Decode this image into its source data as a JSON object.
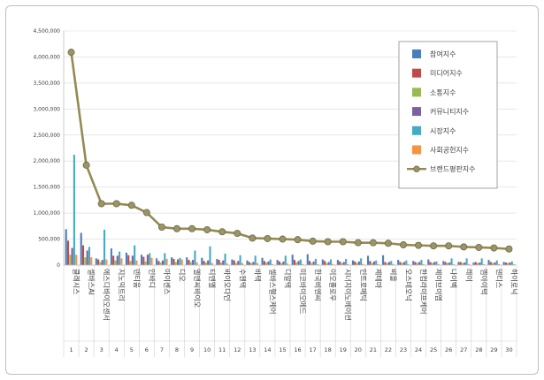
{
  "chart_data": {
    "type": "bar",
    "title": "",
    "xlabel": "",
    "ylabel": "",
    "ylim": [
      0,
      4500000
    ],
    "yticks": [
      "0",
      "500,000",
      "1,000,000",
      "1,500,000",
      "2,000,000",
      "2,500,000",
      "3,000,000",
      "3,500,000",
      "4,000,000",
      "4,500,000"
    ],
    "ytick_values": [
      0,
      500000,
      1000000,
      1500000,
      2000000,
      2500000,
      3000000,
      3500000,
      4000000,
      4500000
    ],
    "grid": true,
    "legend_position": "top-right",
    "categories": [
      "클래시스",
      "셀바스AI",
      "에스디바이오센서",
      "지노믹트리",
      "덴티움",
      "인바디",
      "아이센스",
      "디오",
      "엘앤씨바이오",
      "티앤엘",
      "바이오다인",
      "수젠텍",
      "바텍",
      "셀바스헬스케어",
      "디알텍",
      "미코바이오메드",
      "한국비엔씨",
      "이오플로우",
      "시너지이노베이션",
      "인트로메딕",
      "제테마",
      "비올",
      "오스테오닉",
      "한컴라이프케어",
      "제이브이엠",
      "나이벡",
      "레이",
      "엠아이텍",
      "덴티스",
      "하이로닉"
    ],
    "category_numbers": [
      "1",
      "2",
      "3",
      "4",
      "5",
      "6",
      "7",
      "8",
      "9",
      "10",
      "11",
      "12",
      "13",
      "14",
      "15",
      "16",
      "17",
      "18",
      "19",
      "20",
      "21",
      "22",
      "23",
      "24",
      "25",
      "26",
      "27",
      "28",
      "29",
      "30"
    ],
    "series": [
      {
        "name": "참여지수",
        "color": "#4a7ebb",
        "kind": "bar",
        "values": [
          690000,
          620000,
          130000,
          320000,
          240000,
          200000,
          130000,
          150000,
          150000,
          140000,
          120000,
          110000,
          90000,
          140000,
          100000,
          200000,
          210000,
          110000,
          100000,
          90000,
          180000,
          190000,
          100000,
          80000,
          110000,
          80000,
          60000,
          50000,
          100000,
          60000
        ]
      },
      {
        "name": "미디어지수",
        "color": "#be4b48",
        "kind": "bar",
        "values": [
          470000,
          380000,
          110000,
          180000,
          190000,
          160000,
          80000,
          120000,
          100000,
          80000,
          100000,
          90000,
          60000,
          80000,
          70000,
          100000,
          80000,
          80000,
          70000,
          70000,
          80000,
          60000,
          60000,
          60000,
          60000,
          60000,
          60000,
          60000,
          60000,
          50000
        ]
      },
      {
        "name": "소통지수",
        "color": "#98b954",
        "kind": "bar",
        "values": [
          200000,
          150000,
          60000,
          90000,
          80000,
          70000,
          50000,
          60000,
          60000,
          50000,
          50000,
          40000,
          40000,
          50000,
          40000,
          50000,
          40000,
          40000,
          40000,
          40000,
          40000,
          40000,
          40000,
          40000,
          40000,
          40000,
          40000,
          40000,
          40000,
          40000
        ]
      },
      {
        "name": "커뮤니티지수",
        "color": "#7d60a0",
        "kind": "bar",
        "values": [
          330000,
          280000,
          100000,
          180000,
          180000,
          200000,
          90000,
          110000,
          100000,
          90000,
          90000,
          80000,
          60000,
          70000,
          70000,
          80000,
          70000,
          60000,
          60000,
          70000,
          70000,
          60000,
          60000,
          60000,
          60000,
          50000,
          50000,
          50000,
          50000,
          50000
        ]
      },
      {
        "name": "시장지수",
        "color": "#46aac5",
        "kind": "bar",
        "values": [
          2120000,
          350000,
          680000,
          260000,
          380000,
          230000,
          230000,
          140000,
          280000,
          360000,
          220000,
          190000,
          180000,
          110000,
          180000,
          110000,
          120000,
          110000,
          120000,
          130000,
          90000,
          80000,
          90000,
          100000,
          70000,
          130000,
          130000,
          130000,
          90000,
          70000
        ]
      },
      {
        "name": "사회공헌지수",
        "color": "#f69240",
        "kind": "bar",
        "values": [
          200000,
          150000,
          110000,
          130000,
          90000,
          140000,
          120000,
          110000,
          50000,
          40000,
          30000,
          40000,
          40000,
          20000,
          30000,
          20000,
          20000,
          20000,
          20000,
          20000,
          20000,
          20000,
          20000,
          20000,
          20000,
          20000,
          20000,
          20000,
          20000,
          20000
        ]
      },
      {
        "name": "브랜드평판지수",
        "color": "#948a54",
        "kind": "line",
        "values": [
          4090000,
          1920000,
          1180000,
          1180000,
          1150000,
          1010000,
          730000,
          700000,
          700000,
          680000,
          640000,
          610000,
          520000,
          510000,
          500000,
          490000,
          460000,
          450000,
          450000,
          430000,
          430000,
          420000,
          390000,
          380000,
          370000,
          370000,
          350000,
          340000,
          330000,
          310000
        ]
      }
    ]
  }
}
